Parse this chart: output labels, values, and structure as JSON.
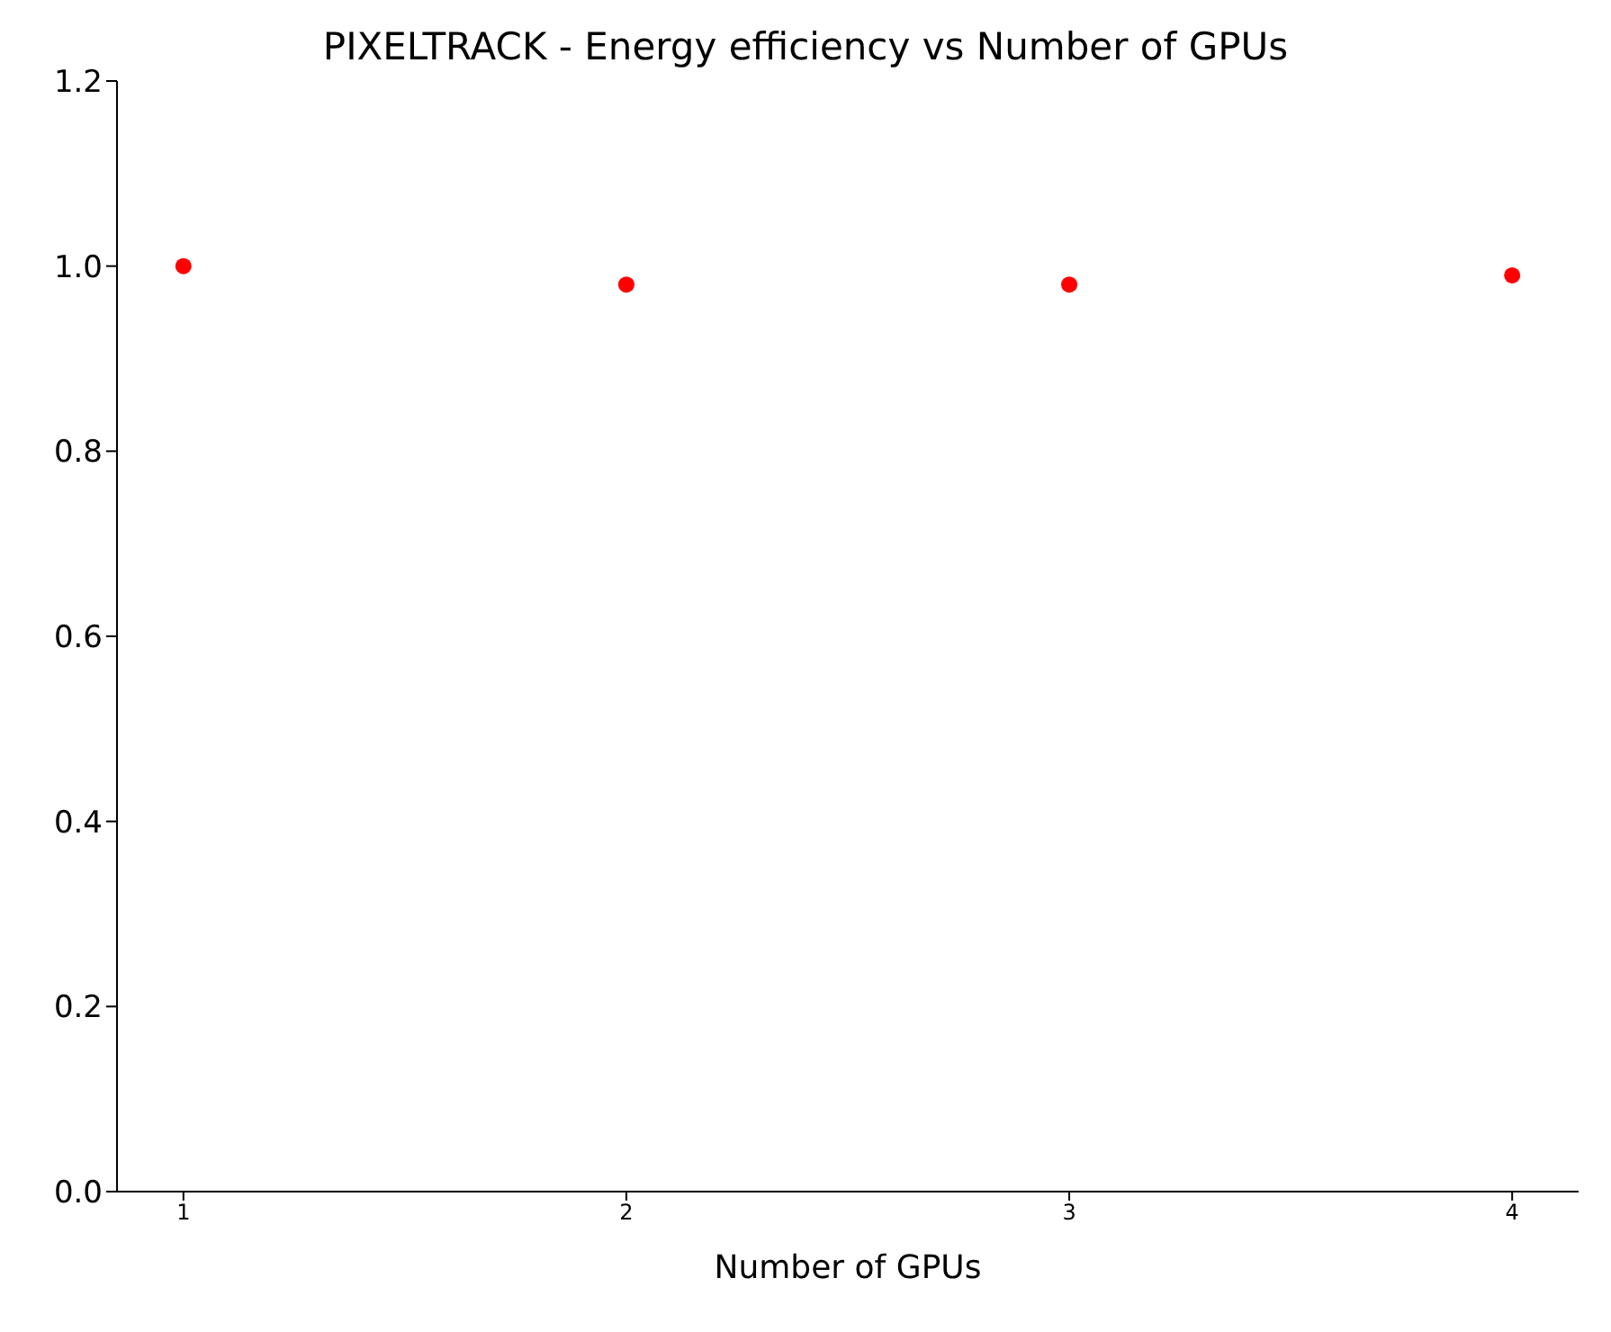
{
  "chart_data": {
    "type": "scatter",
    "title": "PIXELTRACK - Energy efficiency vs Number of GPUs",
    "xlabel": "Number of GPUs",
    "x": [
      1,
      2,
      3,
      4
    ],
    "series": [
      {
        "color": "#ff0000",
        "values": [
          1.0,
          0.98,
          0.98,
          0.99
        ]
      }
    ],
    "xlim": [
      0.85,
      4.15
    ],
    "xticks": [
      1,
      2,
      3,
      4
    ],
    "ylim": [
      0,
      1.2
    ],
    "yticks": [
      {
        "value": 0,
        "label": "0.0"
      },
      0.2,
      0.4,
      0.6,
      0.8,
      {
        "value": 1,
        "label": "1.0"
      },
      1.2
    ],
    "grid": false,
    "legend": false,
    "marker": "circle"
  }
}
